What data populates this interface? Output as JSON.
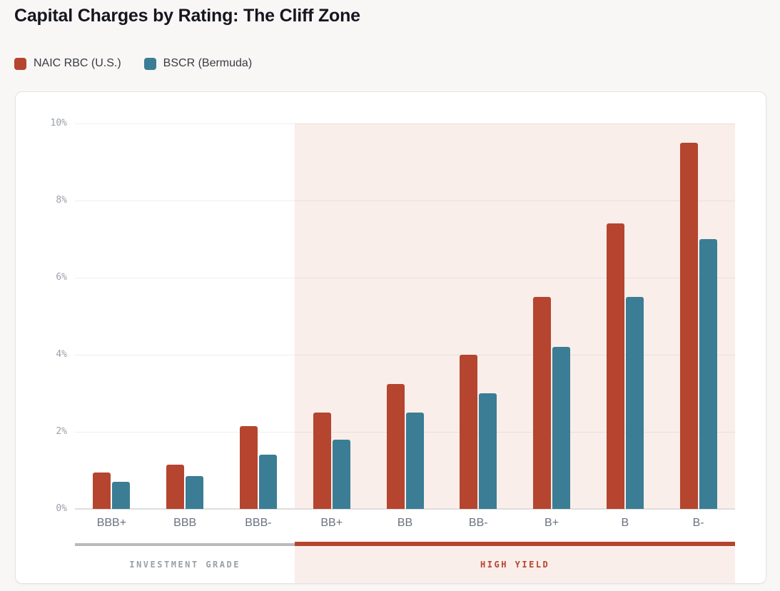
{
  "header": {
    "title": "Capital Charges by Rating: The Cliff Zone"
  },
  "legend": {
    "items": [
      {
        "label": "NAIC RBC (U.S.)",
        "color": "#b5452f"
      },
      {
        "label": "BSCR (Bermuda)",
        "color": "#3b7d94"
      }
    ]
  },
  "chart_data": {
    "type": "bar",
    "title": "Capital Charges by Rating: The Cliff Zone",
    "categories": [
      "BBB+",
      "BBB",
      "BBB-",
      "BB+",
      "BB",
      "BB-",
      "B+",
      "B",
      "B-"
    ],
    "series": [
      {
        "name": "NAIC RBC (U.S.)",
        "color": "#b5452f",
        "values": [
          0.95,
          1.15,
          2.15,
          2.5,
          3.25,
          4.0,
          5.5,
          7.4,
          9.5
        ]
      },
      {
        "name": "BSCR (Bermuda)",
        "color": "#3b7d94",
        "values": [
          0.7,
          0.85,
          1.4,
          1.8,
          2.5,
          3.0,
          4.2,
          5.5,
          7.0
        ]
      }
    ],
    "xlabel": "",
    "ylabel": "",
    "ylim": [
      0,
      10
    ],
    "ytick_values": [
      0,
      2,
      4,
      6,
      8,
      10
    ],
    "yticks": [
      "0%",
      "2%",
      "4%",
      "6%",
      "8%",
      "10%"
    ],
    "grid": "horizontal",
    "legend_position": "top-left-outside",
    "zones": [
      {
        "label": "INVESTMENT GRADE",
        "from": "BBB+",
        "to": "BBB-",
        "band_color": "transparent",
        "line_color": "#b9babc",
        "text_color": "#9aa0a4"
      },
      {
        "label": "HIGH YIELD",
        "from": "BB+",
        "to": "B-",
        "band_color": "#f9eeea",
        "line_color": "#b5452f",
        "text_color": "#b5452f"
      }
    ]
  }
}
